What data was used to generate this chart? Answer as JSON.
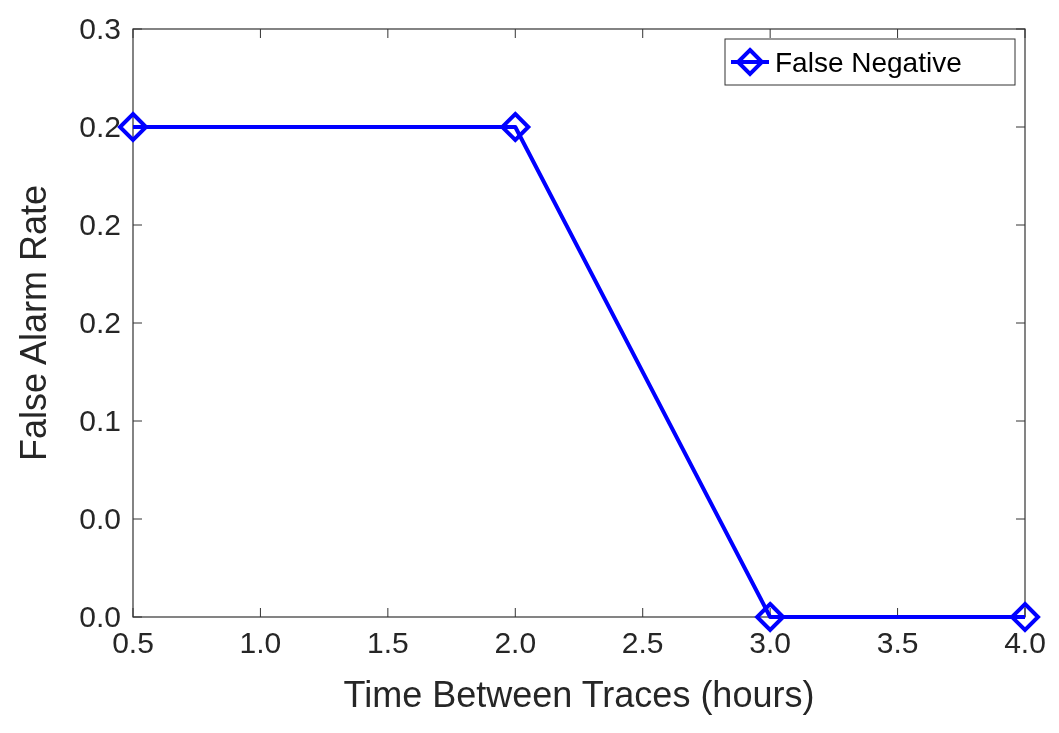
{
  "chart_data": {
    "type": "line",
    "xlabel": "Time Between Traces (hours)",
    "ylabel": "False Alarm Rate",
    "x": [
      0.5,
      2.0,
      3.0,
      4.0
    ],
    "series": [
      {
        "name": "False Negative",
        "color": "#0000ff",
        "values": [
          0.25,
          0.25,
          0,
          0
        ]
      }
    ],
    "xlim": [
      0.5,
      4.0
    ],
    "xticks": [
      {
        "value": 0.5,
        "label": "0.5"
      },
      {
        "value": 1,
        "label": "1.0"
      },
      {
        "value": 1.5,
        "label": "1.5"
      },
      {
        "value": 2,
        "label": "2.0"
      },
      {
        "value": 2.5,
        "label": "2.5"
      },
      {
        "value": 3,
        "label": "3.0"
      },
      {
        "value": 3.5,
        "label": "3.5"
      },
      {
        "value": 4,
        "label": "4.0"
      }
    ],
    "ylim": [
      0,
      0.3
    ],
    "yticks": [
      {
        "value": 0,
        "label": "0.0"
      },
      {
        "value": 0.05,
        "label": "0.0"
      },
      {
        "value": 0.1,
        "label": "0.1"
      },
      {
        "value": 0.15,
        "label": "0.2"
      },
      {
        "value": 0.2,
        "label": "0.2"
      },
      {
        "value": 0.25,
        "label": "0.2"
      },
      {
        "value": 0.3,
        "label": "0.3"
      }
    ],
    "grid": false,
    "legend": "top right",
    "marker": "diamond",
    "line_style": "solid"
  }
}
